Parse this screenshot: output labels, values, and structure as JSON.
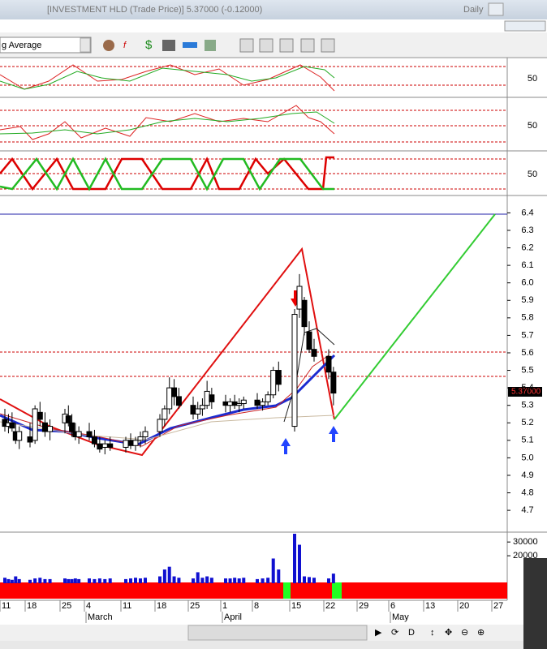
{
  "window": {
    "title": "[INVESTMENT HLD (Trade Price)]   5.37000 (-0.12000)",
    "period": "Daily"
  },
  "toolbar": {
    "indicator": "g Average"
  },
  "oscillators": [
    {
      "mid": 50
    },
    {
      "mid": 50
    },
    {
      "mid": 50
    }
  ],
  "chart_data": {
    "type": "candlestick",
    "x": [
      "Feb 11",
      "Feb 12",
      "Feb 13",
      "Feb 14",
      "Feb 15",
      "Feb 18",
      "Feb 19",
      "Feb 20",
      "Feb 21",
      "Feb 22",
      "Feb 25",
      "Feb 26",
      "Feb 27",
      "Feb 28",
      "Mar 1",
      "Mar 4",
      "Mar 5",
      "Mar 6",
      "Mar 7",
      "Mar 8",
      "Mar 11",
      "Mar 12",
      "Mar 13",
      "Mar 14",
      "Mar 15",
      "Mar 18",
      "Mar 19",
      "Mar 20",
      "Mar 21",
      "Mar 22",
      "Mar 25",
      "Mar 26",
      "Mar 27",
      "Mar 28",
      "Mar 29",
      "Apr 1",
      "Apr 2",
      "Apr 3",
      "Apr 4",
      "Apr 5",
      "Apr 8",
      "Apr 9",
      "Apr 10",
      "Apr 11",
      "Apr 12",
      "Apr 15",
      "Apr 16",
      "Apr 17",
      "Apr 18",
      "Apr 19",
      "Apr 22",
      "Apr 23"
    ],
    "ohlc": [
      [
        5.22,
        5.28,
        5.15,
        5.18
      ],
      [
        5.18,
        5.25,
        5.14,
        5.2
      ],
      [
        5.2,
        5.26,
        5.15,
        5.17
      ],
      [
        5.15,
        5.2,
        5.08,
        5.1
      ],
      [
        5.1,
        5.18,
        5.05,
        5.15
      ],
      [
        5.12,
        5.2,
        5.06,
        5.09
      ],
      [
        5.1,
        5.3,
        5.08,
        5.28
      ],
      [
        5.26,
        5.32,
        5.18,
        5.22
      ],
      [
        5.2,
        5.26,
        5.12,
        5.15
      ],
      [
        5.15,
        5.22,
        5.1,
        5.18
      ],
      [
        5.2,
        5.28,
        5.14,
        5.25
      ],
      [
        5.24,
        5.3,
        5.18,
        5.2
      ],
      [
        5.2,
        5.25,
        5.12,
        5.15
      ],
      [
        5.15,
        5.2,
        5.1,
        5.12
      ],
      [
        5.12,
        5.18,
        5.08,
        5.15
      ],
      [
        5.15,
        5.2,
        5.1,
        5.12
      ],
      [
        5.12,
        5.16,
        5.06,
        5.08
      ],
      [
        5.08,
        5.12,
        5.03,
        5.05
      ],
      [
        5.06,
        5.1,
        5.02,
        5.08
      ],
      [
        5.08,
        5.12,
        5.04,
        5.06
      ],
      [
        5.06,
        5.12,
        5.03,
        5.1
      ],
      [
        5.1,
        5.14,
        5.05,
        5.07
      ],
      [
        5.07,
        5.12,
        5.04,
        5.1
      ],
      [
        5.1,
        5.15,
        5.06,
        5.12
      ],
      [
        5.12,
        5.18,
        5.08,
        5.15
      ],
      [
        5.15,
        5.25,
        5.12,
        5.22
      ],
      [
        5.22,
        5.3,
        5.18,
        5.28
      ],
      [
        5.28,
        5.46,
        5.25,
        5.4
      ],
      [
        5.4,
        5.45,
        5.3,
        5.35
      ],
      [
        5.35,
        5.4,
        5.28,
        5.3
      ],
      [
        5.3,
        5.35,
        5.22,
        5.25
      ],
      [
        5.25,
        5.32,
        5.22,
        5.28
      ],
      [
        5.28,
        5.34,
        5.24,
        5.3
      ],
      [
        5.3,
        5.44,
        5.28,
        5.38
      ],
      [
        5.36,
        5.4,
        5.28,
        5.32
      ],
      [
        5.32,
        5.36,
        5.26,
        5.3
      ],
      [
        5.3,
        5.34,
        5.26,
        5.32
      ],
      [
        5.32,
        5.36,
        5.28,
        5.3
      ],
      [
        5.3,
        5.34,
        5.26,
        5.31
      ],
      [
        5.31,
        5.35,
        5.28,
        5.33
      ],
      [
        5.33,
        5.37,
        5.28,
        5.3
      ],
      [
        5.3,
        5.34,
        5.27,
        5.32
      ],
      [
        5.32,
        5.38,
        5.3,
        5.36
      ],
      [
        5.36,
        5.52,
        5.34,
        5.5
      ],
      [
        5.5,
        5.55,
        5.38,
        5.42
      ],
      [
        5.18,
        5.85,
        5.15,
        5.82
      ],
      [
        5.85,
        6.05,
        5.8,
        5.98
      ],
      [
        5.9,
        5.92,
        5.7,
        5.75
      ],
      [
        5.72,
        5.78,
        5.6,
        5.62
      ],
      [
        5.62,
        5.68,
        5.55,
        5.58
      ],
      [
        5.58,
        5.62,
        5.45,
        5.49
      ],
      [
        5.49,
        5.52,
        5.3,
        5.37
      ]
    ],
    "volume": [
      4000,
      3000,
      2500,
      5000,
      3000,
      2500,
      3500,
      4000,
      3000,
      3000,
      3500,
      3000,
      3000,
      3500,
      3000,
      3500,
      3000,
      3500,
      3000,
      3500,
      3000,
      3500,
      4000,
      3500,
      4000,
      5000,
      10000,
      12000,
      5000,
      4000,
      3500,
      8000,
      4000,
      5000,
      4000,
      3500,
      3500,
      4000,
      3500,
      4000,
      3000,
      3500,
      4000,
      18000,
      10000,
      36000,
      28000,
      5000,
      4500,
      4000,
      3500,
      7000
    ],
    "ylim": [
      4.58,
      6.49
    ],
    "yticks": [
      4.7,
      4.8,
      4.9,
      {
        "value": 5,
        "label": "5.0"
      },
      5.1,
      5.2,
      5.3,
      5.4,
      5.5,
      5.6,
      5.7,
      5.8,
      5.9,
      {
        "value": 6,
        "label": "6.0"
      },
      6.1,
      6.2,
      6.3,
      6.4
    ],
    "vlim": [
      0,
      36000
    ],
    "vticks": [
      20000,
      30000
    ],
    "last_price_label": "5.37000",
    "date_ticks": [
      {
        "value": "Feb 11",
        "label": "11"
      },
      {
        "value": "Feb 18",
        "label": "18"
      },
      {
        "value": "Feb 25",
        "label": "25"
      },
      {
        "value": "Mar 4",
        "label": "4"
      },
      {
        "value": "Mar 11",
        "label": "11"
      },
      {
        "value": "Mar 18",
        "label": "18"
      },
      {
        "value": "Mar 25",
        "label": "25"
      },
      {
        "value": "Apr 1",
        "label": "1"
      },
      {
        "value": "Apr 8",
        "label": "8"
      },
      {
        "value": "Apr 15",
        "label": "15"
      },
      {
        "value": "Apr 22",
        "label": "22"
      },
      {
        "value": "Apr 29",
        "label": "29"
      },
      {
        "value": "May 6",
        "label": "6"
      },
      {
        "value": "May 13",
        "label": "13"
      },
      {
        "value": "May 20",
        "label": "20"
      },
      {
        "value": "May 27",
        "label": "27"
      }
    ],
    "months": [
      {
        "value": "Mar 4",
        "label": "March"
      },
      {
        "value": "Apr 1",
        "label": "April"
      },
      {
        "value": "May 6",
        "label": "May"
      }
    ]
  }
}
